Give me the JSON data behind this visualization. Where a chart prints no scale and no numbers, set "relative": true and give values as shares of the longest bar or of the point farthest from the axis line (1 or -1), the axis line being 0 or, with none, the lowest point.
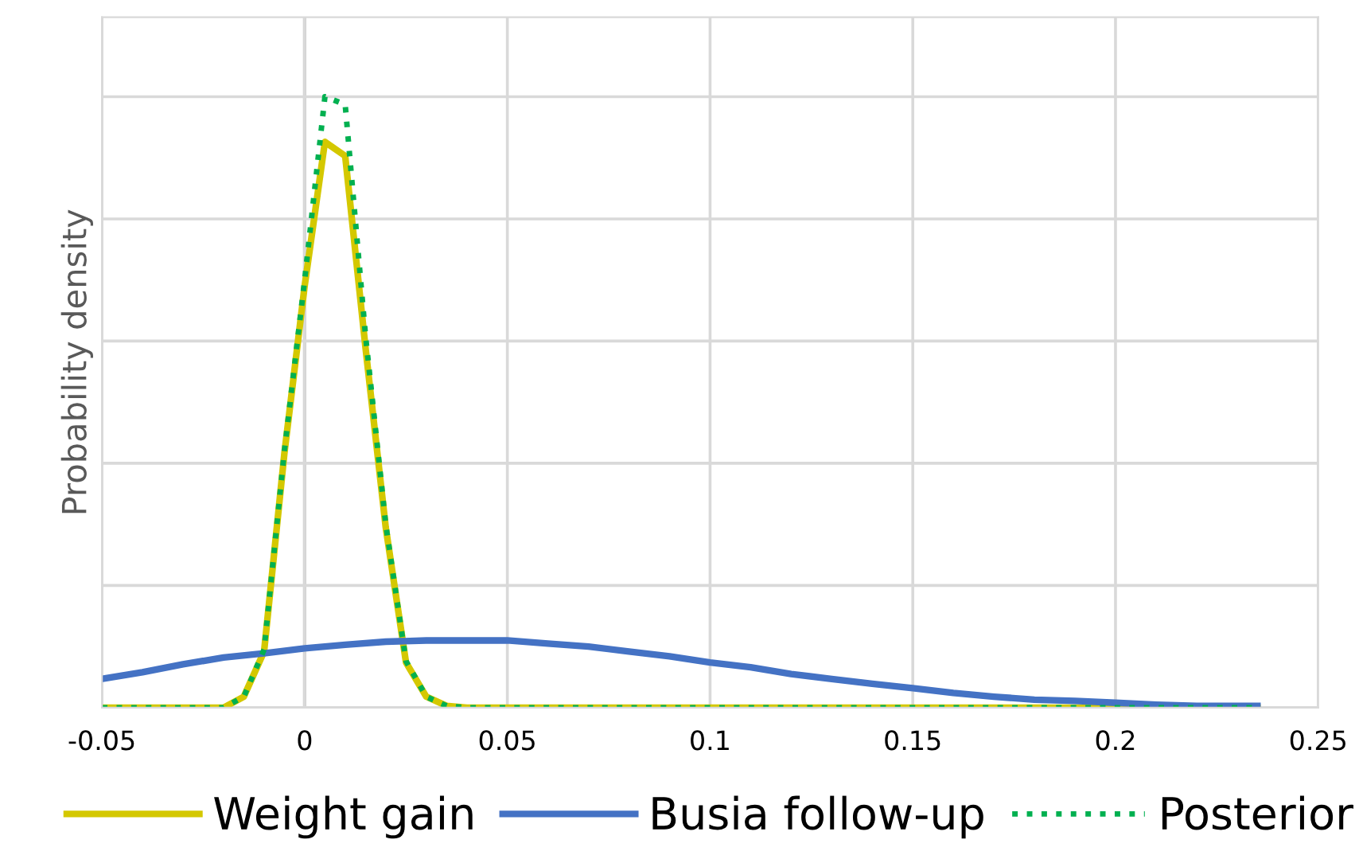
{
  "chart_data": {
    "type": "line",
    "ylabel": "Probability density",
    "relative": true,
    "xlim": [
      -0.05,
      0.25
    ],
    "xticks": [
      {
        "value": -0.05,
        "label": "-0.05"
      },
      0,
      0.05,
      0.1,
      0.15,
      0.2,
      0.25
    ],
    "grid": true,
    "legend": "bottom",
    "tick_labels": "x",
    "series": [
      {
        "name": "Weight gain",
        "color": "#d4c800",
        "line_style": "solid",
        "x": [
          -0.05,
          -0.02,
          -0.015,
          -0.01,
          -0.005,
          0,
          0.005,
          0.01,
          0.015,
          0.02,
          0.025,
          0.03,
          0.035,
          0.04,
          0.235
        ],
        "values": [
          0,
          0,
          0.018,
          0.092,
          0.416,
          0.69,
          0.926,
          0.903,
          0.59,
          0.295,
          0.074,
          0.018,
          0.003,
          0,
          0
        ]
      },
      {
        "name": "Busia follow-up",
        "color": "#4472c4",
        "line_style": "solid",
        "x": [
          -0.05,
          -0.04,
          -0.03,
          -0.02,
          -0.01,
          0,
          0.01,
          0.02,
          0.03,
          0.04,
          0.05,
          0.06,
          0.07,
          0.08,
          0.09,
          0.1,
          0.11,
          0.12,
          0.13,
          0.14,
          0.15,
          0.16,
          0.17,
          0.18,
          0.19,
          0.2,
          0.21,
          0.22,
          0.235
        ],
        "values": [
          0.047,
          0.058,
          0.071,
          0.082,
          0.089,
          0.097,
          0.103,
          0.108,
          0.11,
          0.11,
          0.11,
          0.105,
          0.1,
          0.092,
          0.084,
          0.074,
          0.066,
          0.055,
          0.047,
          0.039,
          0.032,
          0.024,
          0.018,
          0.013,
          0.011,
          0.008,
          0.005,
          0.003,
          0.003
        ]
      },
      {
        "name": "Posterior",
        "color": "#00b050",
        "line_style": "dotted",
        "x": [
          -0.05,
          -0.02,
          -0.015,
          -0.01,
          -0.005,
          0,
          0.005,
          0.01,
          0.015,
          0.02,
          0.025,
          0.03,
          0.035,
          0.04,
          0.235
        ],
        "values": [
          0,
          0,
          0.018,
          0.095,
          0.42,
          0.7,
          1.0,
          0.987,
          0.61,
          0.3,
          0.076,
          0.018,
          0.003,
          0,
          0
        ]
      }
    ]
  }
}
